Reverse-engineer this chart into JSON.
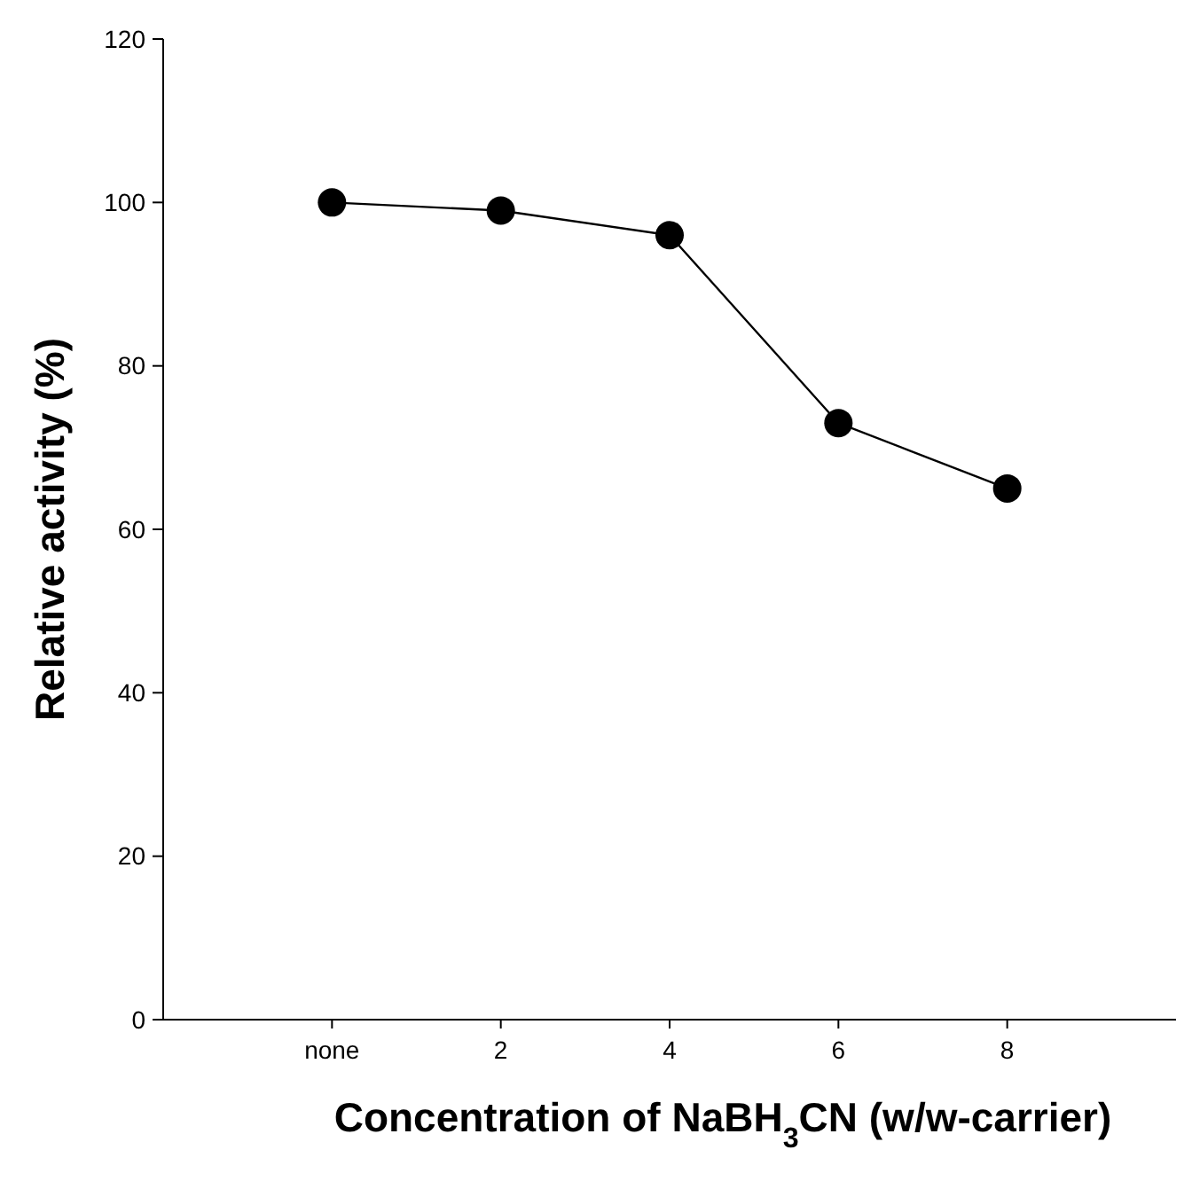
{
  "chart_data": {
    "type": "line",
    "xlabel": "Concentration of NaBH$_{3}$CN (w/w-carrier)",
    "ylabel": "Relative activity (%)",
    "categories": [
      "none",
      "2",
      "4",
      "6",
      "8"
    ],
    "series": [
      {
        "color": "#000000",
        "values": [
          100,
          99,
          96,
          73,
          65
        ]
      }
    ],
    "ylim": [
      0,
      120
    ],
    "yticks": [
      0,
      20,
      40,
      60,
      80,
      100,
      120
    ],
    "grid": false,
    "marker": "circle",
    "line_style": "solid"
  }
}
